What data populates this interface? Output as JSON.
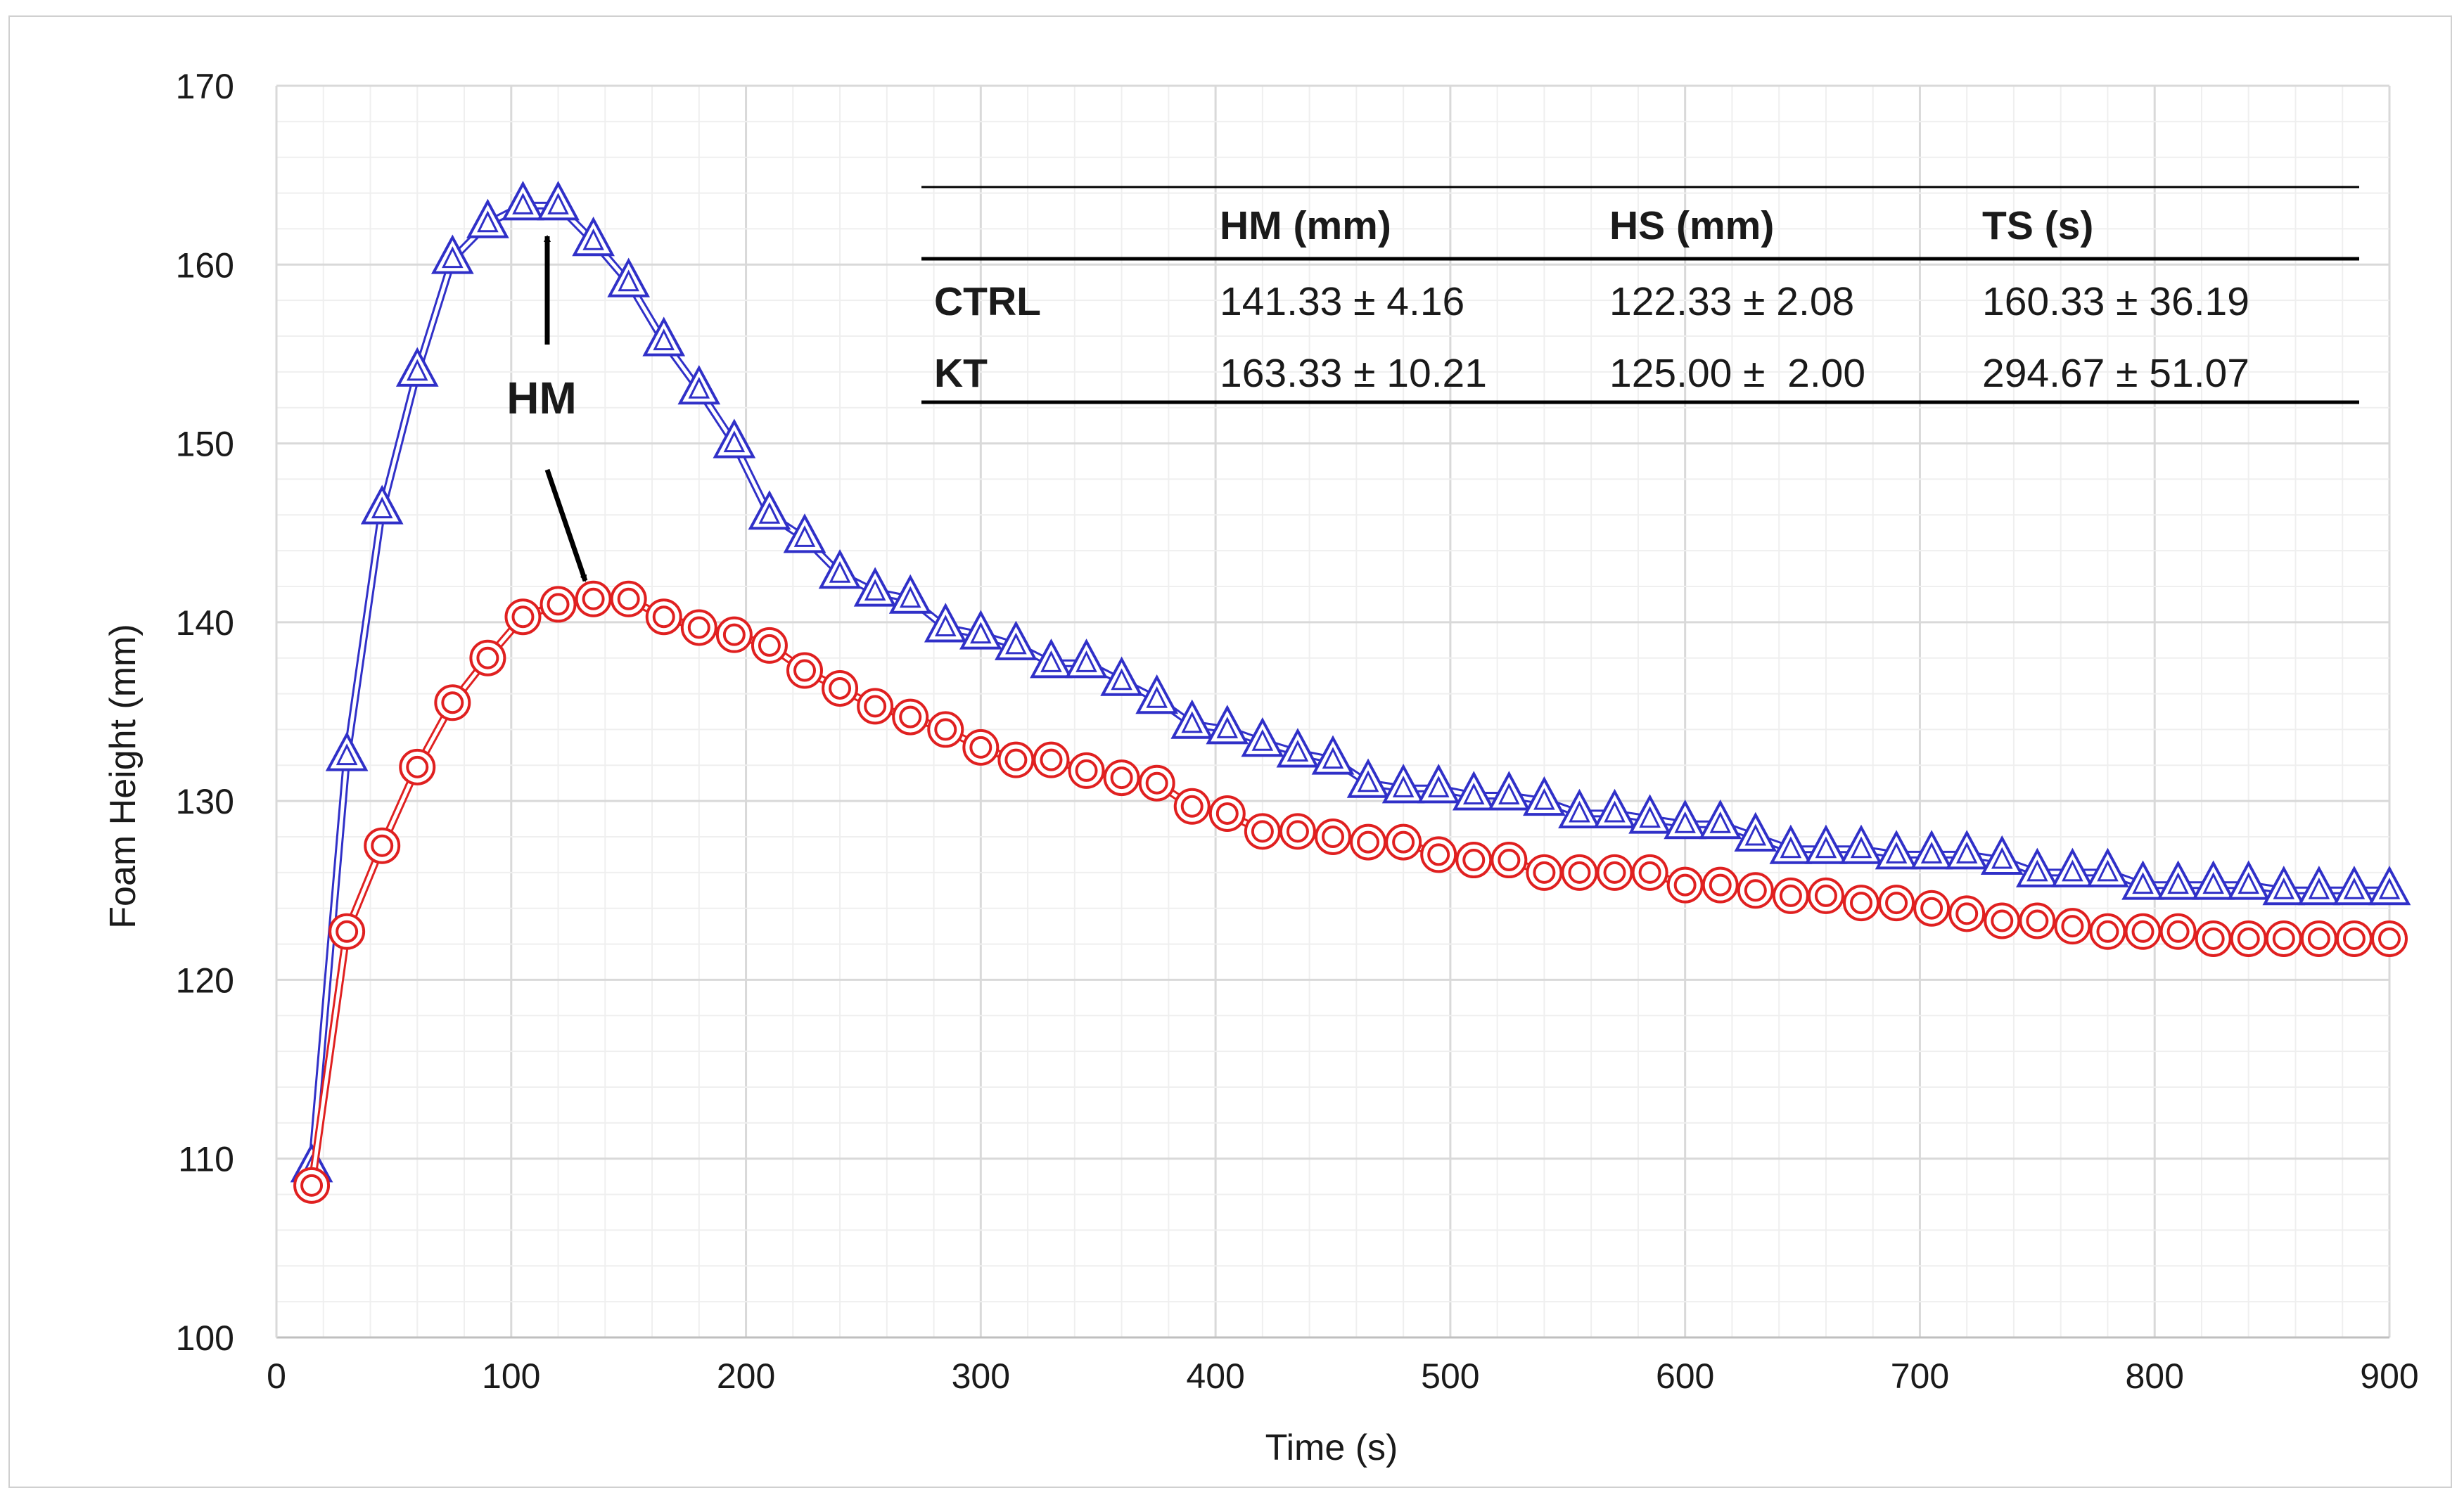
{
  "chart_data": {
    "type": "line",
    "title": "",
    "xlabel": "Time (s)",
    "ylabel": "Foam Height (mm)",
    "xlim": [
      0,
      900
    ],
    "ylim": [
      100,
      170
    ],
    "xticks": [
      "0",
      "100",
      "200",
      "300",
      "400",
      "500",
      "600",
      "700",
      "800",
      "900"
    ],
    "yticks": [
      "100",
      "110",
      "120",
      "130",
      "140",
      "150",
      "160",
      "170"
    ],
    "grid": true,
    "x": [
      15,
      30,
      45,
      60,
      75,
      90,
      105,
      120,
      135,
      150,
      165,
      180,
      195,
      210,
      225,
      240,
      255,
      270,
      285,
      300,
      315,
      330,
      345,
      360,
      375,
      390,
      405,
      420,
      435,
      450,
      465,
      480,
      495,
      510,
      525,
      540,
      555,
      570,
      585,
      600,
      615,
      630,
      645,
      660,
      675,
      690,
      705,
      720,
      735,
      750,
      765,
      780,
      795,
      810,
      825,
      840,
      855,
      870,
      885,
      900
    ],
    "series": [
      {
        "name": "KT",
        "color": "#3030c8",
        "marker": "triangle",
        "values": [
          109.5,
          132.5,
          146.3,
          154.0,
          160.3,
          162.3,
          163.3,
          163.3,
          161.3,
          159.0,
          155.7,
          153.0,
          150.0,
          146.0,
          144.7,
          142.7,
          141.7,
          141.3,
          139.7,
          139.3,
          138.7,
          137.7,
          137.7,
          136.7,
          135.7,
          134.3,
          134.0,
          133.3,
          132.7,
          132.3,
          131.0,
          130.7,
          130.7,
          130.3,
          130.3,
          130.0,
          129.3,
          129.3,
          129.0,
          128.7,
          128.7,
          128.0,
          127.3,
          127.3,
          127.3,
          127.0,
          127.0,
          127.0,
          126.7,
          126.0,
          126.0,
          126.0,
          125.3,
          125.3,
          125.3,
          125.3,
          125.0,
          125.0,
          125.0,
          125.0
        ]
      },
      {
        "name": "CTRL",
        "color": "#e02020",
        "marker": "circle",
        "values": [
          108.5,
          122.7,
          127.5,
          131.9,
          135.5,
          138.0,
          140.3,
          141.0,
          141.3,
          141.3,
          140.3,
          139.7,
          139.3,
          138.7,
          137.3,
          136.3,
          135.3,
          134.7,
          134.0,
          133.0,
          132.3,
          132.3,
          131.7,
          131.3,
          131.0,
          129.7,
          129.3,
          128.3,
          128.3,
          128.0,
          127.7,
          127.7,
          127.0,
          126.7,
          126.7,
          126.0,
          126.0,
          126.0,
          126.0,
          125.3,
          125.3,
          125.0,
          124.7,
          124.7,
          124.3,
          124.3,
          124.0,
          123.7,
          123.3,
          123.3,
          123.0,
          122.7,
          122.7,
          122.7,
          122.3,
          122.3,
          122.3,
          122.3,
          122.3,
          122.3
        ]
      }
    ],
    "annotation": "HM",
    "summary_table": {
      "headers": [
        "",
        "HM (mm)",
        "HS (mm)",
        "TS (s)"
      ],
      "rows": [
        [
          "CTRL",
          "141.33 ± 4.16",
          "122.33 ± 2.08",
          "160.33 ± 36.19"
        ],
        [
          "KT",
          "163.33 ± 10.21",
          "125.00 ±  2.00",
          "294.67 ± 51.07"
        ]
      ]
    }
  }
}
